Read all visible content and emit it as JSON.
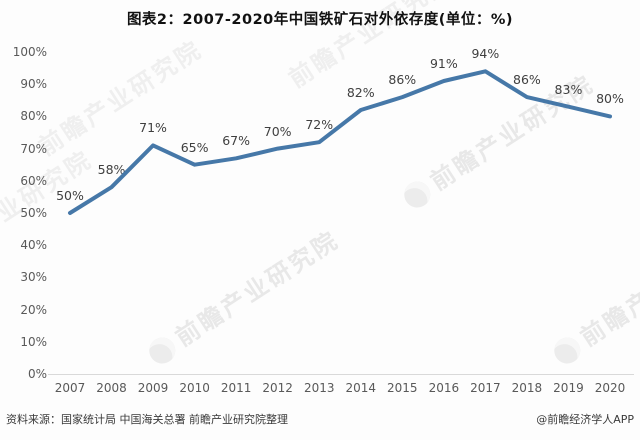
{
  "page": {
    "title": "图表2：2007-2020年中国铁矿石对外依存度(单位：%)"
  },
  "watermark": {
    "text": "前瞻产业研究院"
  },
  "footer": {
    "source": "资料来源：国家统计局 中国海关总署 前瞻产业研究院整理",
    "credit": "@前瞻经济学人APP"
  },
  "chart_data": {
    "type": "line",
    "title": "图表2：2007-2020年中国铁矿石对外依存度(单位：%)",
    "categories": [
      "2007",
      "2008",
      "2009",
      "2010",
      "2011",
      "2012",
      "2013",
      "2014",
      "2015",
      "2016",
      "2017",
      "2018",
      "2019",
      "2020"
    ],
    "values": [
      50,
      58,
      71,
      65,
      67,
      70,
      72,
      82,
      86,
      91,
      94,
      86,
      83,
      80
    ],
    "data_label_suffix": "%",
    "xlabel": "",
    "ylabel": "",
    "ylim": [
      0,
      100
    ],
    "y_tick_step": 10,
    "y_tick_suffix": "%",
    "grid": false,
    "legend": "none",
    "line_color": "#4678a8",
    "label_color": "#3f3f3f",
    "axis_color": "#d9d9d9",
    "tick_color": "#595959"
  }
}
